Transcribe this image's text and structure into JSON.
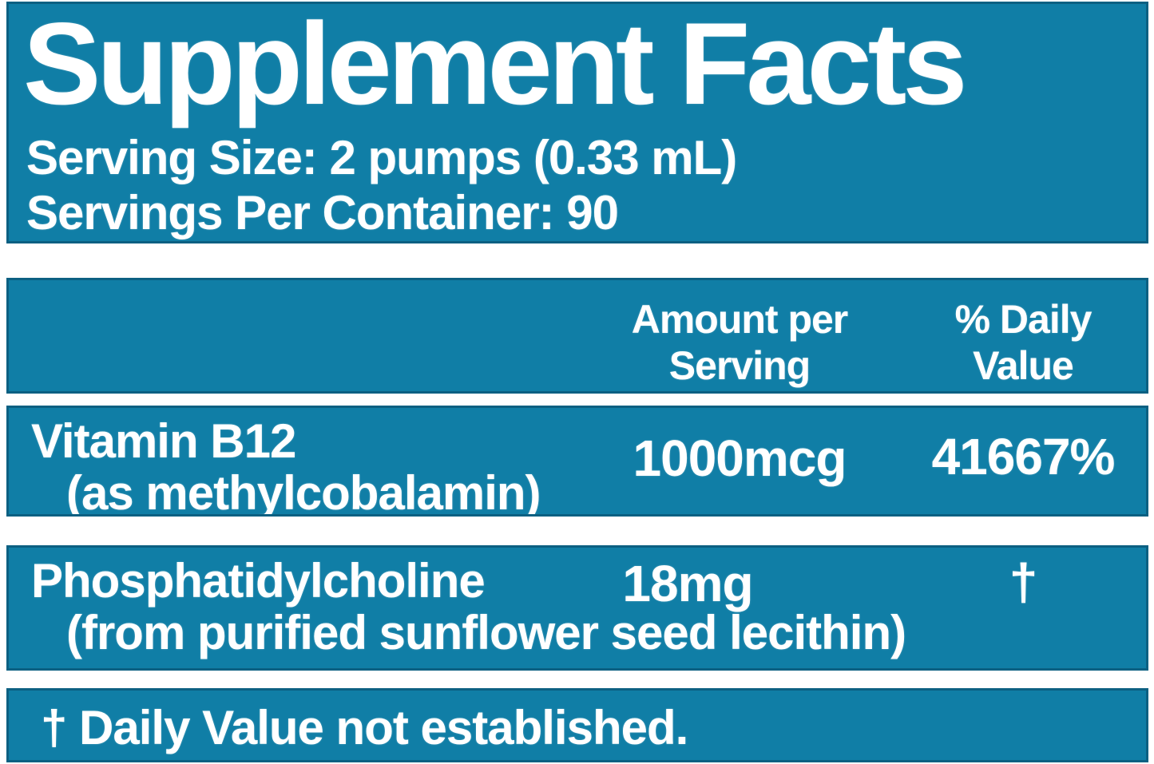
{
  "label": {
    "title": "Supplement Facts",
    "serving_size": "Serving Size: 2 pumps (0.33 mL)",
    "servings_per_container": "Servings Per Container: 90"
  },
  "table": {
    "amount_header": {
      "line1": "Amount per",
      "line2": "Serving"
    },
    "daily_value_header": {
      "line1": "% Daily",
      "line2": "Value"
    },
    "rows": [
      {
        "name": "Vitamin B12",
        "note": "(as methylcobalamin)",
        "amount": "1000mcg",
        "daily_value": "41667%"
      },
      {
        "name": "Phosphatidylcholine",
        "note": "(from purified sunflower seed lecithin)",
        "amount": "18mg",
        "daily_value": "†"
      }
    ],
    "footnote": "† Daily Value not established."
  },
  "colors": {
    "panel": "#107ea6",
    "panel_border": "#0c6082",
    "text": "#ffffff",
    "page_background": "#ffffff"
  }
}
